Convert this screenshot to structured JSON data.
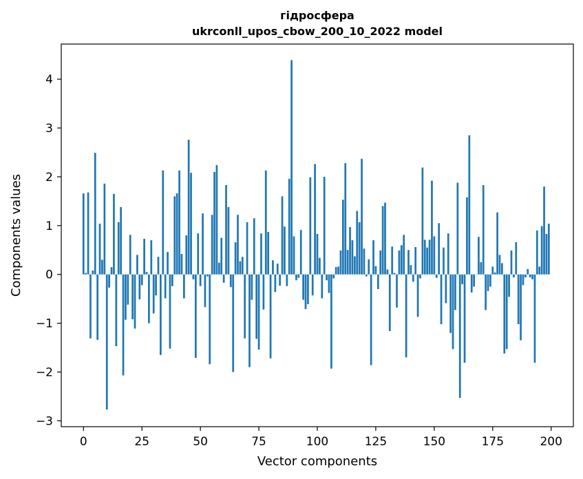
{
  "chart_data": {
    "type": "bar",
    "title": "гідросфера",
    "subtitle": "ukrconll_upos_cbow_200_10_2022 model",
    "xlabel": "Vector components",
    "ylabel": "Components values",
    "xlim": [
      -9.5,
      209.5
    ],
    "ylim": [
      -3.12,
      4.72
    ],
    "xticks": [
      0,
      25,
      50,
      75,
      100,
      125,
      150,
      175,
      200
    ],
    "xtick_labels": [
      "0",
      "25",
      "50",
      "75",
      "100",
      "125",
      "150",
      "175",
      "200"
    ],
    "yticks": [
      -3,
      -2,
      -1,
      0,
      1,
      2,
      3,
      4
    ],
    "ytick_labels": [
      "−3",
      "−2",
      "−1",
      "0",
      "1",
      "2",
      "3",
      "4"
    ],
    "bar_color": "#1f77b4",
    "grid": false,
    "x": [
      0,
      1,
      2,
      3,
      4,
      5,
      6,
      7,
      8,
      9,
      10,
      11,
      12,
      13,
      14,
      15,
      16,
      17,
      18,
      19,
      20,
      21,
      22,
      23,
      24,
      25,
      26,
      27,
      28,
      29,
      30,
      31,
      32,
      33,
      34,
      35,
      36,
      37,
      38,
      39,
      40,
      41,
      42,
      43,
      44,
      45,
      46,
      47,
      48,
      49,
      50,
      51,
      52,
      53,
      54,
      55,
      56,
      57,
      58,
      59,
      60,
      61,
      62,
      63,
      64,
      65,
      66,
      67,
      68,
      69,
      70,
      71,
      72,
      73,
      74,
      75,
      76,
      77,
      78,
      79,
      80,
      81,
      82,
      83,
      84,
      85,
      86,
      87,
      88,
      89,
      90,
      91,
      92,
      93,
      94,
      95,
      96,
      97,
      98,
      99,
      100,
      101,
      102,
      103,
      104,
      105,
      106,
      107,
      108,
      109,
      110,
      111,
      112,
      113,
      114,
      115,
      116,
      117,
      118,
      119,
      120,
      121,
      122,
      123,
      124,
      125,
      126,
      127,
      128,
      129,
      130,
      131,
      132,
      133,
      134,
      135,
      136,
      137,
      138,
      139,
      140,
      141,
      142,
      143,
      144,
      145,
      146,
      147,
      148,
      149,
      150,
      151,
      152,
      153,
      154,
      155,
      156,
      157,
      158,
      159,
      160,
      161,
      162,
      163,
      164,
      165,
      166,
      167,
      168,
      169,
      170,
      171,
      172,
      173,
      174,
      175,
      176,
      177,
      178,
      179,
      180,
      181,
      182,
      183,
      184,
      185,
      186,
      187,
      188,
      189,
      190,
      191,
      192,
      193,
      194,
      195,
      196,
      197,
      198,
      199
    ],
    "values": [
      1.66,
      0.03,
      1.68,
      -1.31,
      0.08,
      2.49,
      -1.34,
      1.04,
      0.3,
      1.86,
      -2.77,
      -0.27,
      0.15,
      1.65,
      -1.47,
      1.07,
      1.38,
      -2.07,
      -0.93,
      -0.62,
      0.81,
      -0.92,
      -1.11,
      0.4,
      -0.51,
      -0.22,
      0.73,
      0.05,
      -1.0,
      0.7,
      -0.8,
      -0.43,
      0.36,
      -1.65,
      2.13,
      -0.49,
      0.46,
      -1.52,
      -0.24,
      1.6,
      1.66,
      2.13,
      0.42,
      -0.49,
      0.8,
      2.76,
      2.08,
      -0.1,
      -1.71,
      0.84,
      -0.24,
      1.25,
      -0.67,
      -0.04,
      -1.84,
      1.22,
      2.1,
      2.24,
      0.24,
      0.75,
      -0.17,
      1.83,
      1.38,
      -0.26,
      -2.0,
      0.66,
      1.22,
      0.27,
      0.36,
      -1.31,
      1.07,
      -1.9,
      -0.52,
      1.15,
      -1.32,
      -1.54,
      0.84,
      -0.72,
      2.13,
      0.87,
      -1.72,
      0.29,
      -0.36,
      0.22,
      -0.23,
      1.6,
      0.98,
      -0.24,
      1.96,
      4.39,
      0.78,
      -0.12,
      -0.07,
      0.91,
      -0.52,
      -0.71,
      -0.61,
      1.99,
      -0.43,
      2.26,
      0.83,
      0.34,
      -0.49,
      2.0,
      -0.12,
      -0.38,
      -1.93,
      -0.08,
      0.15,
      0.16,
      0.49,
      1.53,
      2.28,
      0.5,
      0.97,
      0.7,
      0.37,
      1.3,
      1.07,
      2.37,
      0.53,
      -0.04,
      0.31,
      -1.86,
      0.7,
      0.17,
      -0.3,
      0.49,
      1.4,
      1.47,
      0.1,
      -1.16,
      0.57,
      0.03,
      -0.68,
      0.49,
      0.6,
      0.81,
      -1.7,
      0.5,
      0.19,
      -0.15,
      0.56,
      -0.87,
      -0.08,
      2.19,
      0.71,
      0.55,
      0.71,
      1.92,
      0.78,
      -0.07,
      1.05,
      -1.02,
      0.55,
      -0.59,
      0.84,
      -1.2,
      -1.53,
      -0.73,
      1.88,
      -2.53,
      -0.2,
      -1.81,
      1.58,
      2.85,
      -0.37,
      -0.25,
      0.0,
      0.77,
      0.25,
      1.83,
      -0.73,
      -0.34,
      -0.25,
      0.16,
      0.04,
      1.27,
      0.4,
      0.23,
      -1.62,
      -1.53,
      -0.46,
      0.49,
      -0.06,
      0.66,
      -1.02,
      -1.35,
      -0.22,
      -0.06,
      0.11,
      -0.06,
      -0.1,
      -1.81,
      0.9,
      0.16,
      0.99,
      1.8,
      0.83,
      1.04
    ]
  }
}
